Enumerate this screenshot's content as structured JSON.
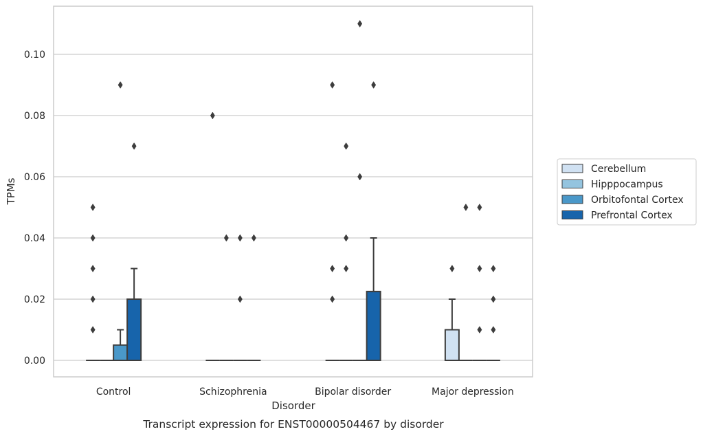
{
  "chart_data": {
    "type": "box",
    "xlabel": "Disorder",
    "ylabel": "TPMs",
    "caption": "Transcript expression for ENST00000504467 by disorder",
    "categories": [
      "Control",
      "Schizophrenia",
      "Bipolar disorder",
      "Major depression"
    ],
    "ylim": [
      -0.0054,
      0.1158
    ],
    "yticks": [
      0.0,
      0.02,
      0.04,
      0.06,
      0.08,
      0.1
    ],
    "ytick_labels": [
      "0.00",
      "0.02",
      "0.04",
      "0.06",
      "0.08",
      "0.10"
    ],
    "grid": "horizontal",
    "legend_position": "right",
    "series": [
      {
        "name": "Cerebellum",
        "color": "#d0e1f2",
        "boxes": [
          {
            "q1": 0,
            "median": 0,
            "q3": 0,
            "whislo": 0,
            "whishi": 0,
            "fliers": [
              0.01,
              0.02,
              0.03,
              0.04,
              0.05
            ]
          },
          {
            "q1": 0,
            "median": 0,
            "q3": 0,
            "whislo": 0,
            "whishi": 0,
            "fliers": [
              0.08
            ]
          },
          {
            "q1": 0,
            "median": 0,
            "q3": 0,
            "whislo": 0,
            "whishi": 0,
            "fliers": [
              0.02,
              0.03,
              0.09
            ]
          },
          {
            "q1": 0,
            "median": 0,
            "q3": 0.01,
            "whislo": 0,
            "whishi": 0.02,
            "fliers": [
              0.03
            ]
          }
        ]
      },
      {
        "name": "Hipppocampus",
        "color": "#94c4df",
        "boxes": [
          {
            "q1": 0,
            "median": 0,
            "q3": 0,
            "whislo": 0,
            "whishi": 0,
            "fliers": []
          },
          {
            "q1": 0,
            "median": 0,
            "q3": 0,
            "whislo": 0,
            "whishi": 0,
            "fliers": [
              0.04
            ]
          },
          {
            "q1": 0,
            "median": 0,
            "q3": 0,
            "whislo": 0,
            "whishi": 0,
            "fliers": [
              0.03,
              0.04,
              0.07
            ]
          },
          {
            "q1": 0,
            "median": 0,
            "q3": 0,
            "whislo": 0,
            "whishi": 0,
            "fliers": [
              0.05
            ]
          }
        ]
      },
      {
        "name": "Orbitofontal Cortex",
        "color": "#4a98c9",
        "boxes": [
          {
            "q1": 0,
            "median": 0,
            "q3": 0.005,
            "whislo": 0,
            "whishi": 0.01,
            "fliers": [
              0.09
            ]
          },
          {
            "q1": 0,
            "median": 0,
            "q3": 0,
            "whislo": 0,
            "whishi": 0,
            "fliers": [
              0.02,
              0.04
            ]
          },
          {
            "q1": 0,
            "median": 0,
            "q3": 0,
            "whislo": 0,
            "whishi": 0,
            "fliers": [
              0.06,
              0.11
            ]
          },
          {
            "q1": 0,
            "median": 0,
            "q3": 0,
            "whislo": 0,
            "whishi": 0,
            "fliers": [
              0.01,
              0.03,
              0.05
            ]
          }
        ]
      },
      {
        "name": "Prefrontal Cortex",
        "color": "#1764ab",
        "boxes": [
          {
            "q1": 0,
            "median": 0,
            "q3": 0.02,
            "whislo": 0,
            "whishi": 0.03,
            "fliers": [
              0.07
            ]
          },
          {
            "q1": 0,
            "median": 0,
            "q3": 0,
            "whislo": 0,
            "whishi": 0,
            "fliers": [
              0.04
            ]
          },
          {
            "q1": 0,
            "median": 0,
            "q3": 0.0225,
            "whislo": 0,
            "whishi": 0.04,
            "fliers": [
              0.09
            ]
          },
          {
            "q1": 0,
            "median": 0,
            "q3": 0,
            "whislo": 0,
            "whishi": 0,
            "fliers": [
              0.01,
              0.02,
              0.03
            ]
          }
        ]
      }
    ]
  }
}
